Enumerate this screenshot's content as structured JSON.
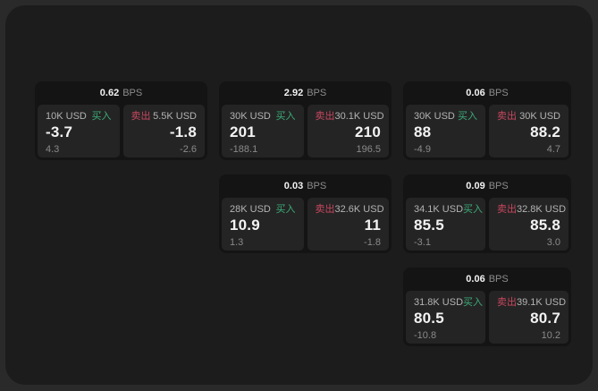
{
  "labels": {
    "unit": "BPS",
    "buy": "买入",
    "sell": "卖出"
  },
  "colors": {
    "buy_green": "#3cab79",
    "sell_red": "#c8475f",
    "window_bg": "#1c1c1c",
    "card_bg": "#141414",
    "panel_bg": "#242424"
  },
  "cards": [
    {
      "bps": "0.62",
      "buy": {
        "amount": "10K USD",
        "value": "-3.7",
        "sub": "4.3"
      },
      "sell": {
        "amount": "5.5K USD",
        "value": "-1.8",
        "sub": "-2.6"
      }
    },
    {
      "bps": "2.92",
      "buy": {
        "amount": "30K USD",
        "value": "201",
        "sub": "-188.1"
      },
      "sell": {
        "amount": "30.1K USD",
        "value": "210",
        "sub": "196.5"
      }
    },
    {
      "bps": "0.06",
      "buy": {
        "amount": "30K USD",
        "value": "88",
        "sub": "-4.9"
      },
      "sell": {
        "amount": "30K USD",
        "value": "88.2",
        "sub": "4.7"
      }
    },
    {
      "bps": "0.03",
      "buy": {
        "amount": "28K USD",
        "value": "10.9",
        "sub": "1.3"
      },
      "sell": {
        "amount": "32.6K USD",
        "value": "11",
        "sub": "-1.8"
      }
    },
    {
      "bps": "0.09",
      "buy": {
        "amount": "34.1K USD",
        "value": "85.5",
        "sub": "-3.1"
      },
      "sell": {
        "amount": "32.8K USD",
        "value": "85.8",
        "sub": "3.0"
      }
    },
    {
      "bps": "0.06",
      "buy": {
        "amount": "31.8K USD",
        "value": "80.5",
        "sub": "-10.8"
      },
      "sell": {
        "amount": "39.1K USD",
        "value": "80.7",
        "sub": "10.2"
      }
    }
  ]
}
